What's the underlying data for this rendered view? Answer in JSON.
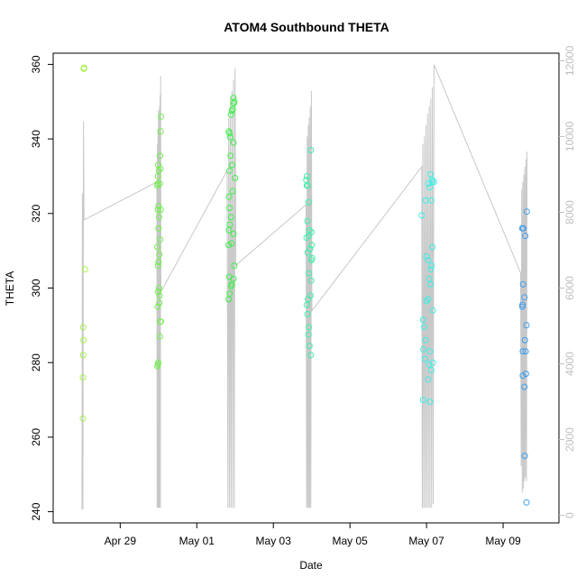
{
  "chart_data": {
    "type": "scatter",
    "title": "ATOM4 Southbound THETA",
    "xlabel": "Date",
    "ylabel": "THETA",
    "x_axis": {
      "type": "date",
      "range": [
        "2023-04-27T06:00",
        "2023-05-10T11:00"
      ],
      "ticks": [
        {
          "value": "2023-04-29",
          "label": "Apr 29"
        },
        {
          "value": "2023-05-01",
          "label": "May 01"
        },
        {
          "value": "2023-05-03",
          "label": "May 03"
        },
        {
          "value": "2023-05-05",
          "label": "May 05"
        },
        {
          "value": "2023-05-07",
          "label": "May 07"
        },
        {
          "value": "2023-05-09",
          "label": "May 09"
        }
      ]
    },
    "y_axis": {
      "range": [
        237,
        363
      ],
      "ticks": [
        240,
        260,
        280,
        300,
        320,
        340,
        360
      ]
    },
    "y2_axis": {
      "range": [
        -200,
        12200
      ],
      "ticks": [
        0,
        2000,
        4000,
        6000,
        8000,
        10000,
        12000
      ],
      "color": "#bfbfbf"
    },
    "grid": false,
    "legend": "none",
    "line_color": "#c8c8c8",
    "series": [
      {
        "color": "#a6f24a",
        "points": [
          [
            "2023-04-28T00:40",
            265
          ],
          [
            "2023-04-28T00:40",
            276
          ],
          [
            "2023-04-28T00:50",
            282
          ],
          [
            "2023-04-28T01:00",
            286
          ],
          [
            "2023-04-28T00:50",
            289.5
          ],
          [
            "2023-04-28T02:00",
            305
          ],
          [
            "2023-04-28T01:10",
            358.8
          ],
          [
            "2023-04-28T01:20",
            359.1
          ]
        ]
      },
      {
        "color": "#6ff04a",
        "points": [
          [
            "2023-04-29T23:20",
            279
          ],
          [
            "2023-04-29T23:40",
            279.5
          ],
          [
            "2023-04-29T23:50",
            280
          ],
          [
            "2023-04-29T23:30",
            295
          ],
          [
            "2023-04-30T00:30",
            296
          ],
          [
            "2023-04-30T00:40",
            298
          ],
          [
            "2023-04-29T23:50",
            299
          ],
          [
            "2023-04-30T00:20",
            300
          ],
          [
            "2023-04-29T23:40",
            306
          ],
          [
            "2023-04-30T00:00",
            307
          ],
          [
            "2023-04-30T00:30",
            309
          ],
          [
            "2023-04-29T23:20",
            311
          ],
          [
            "2023-04-30T01:00",
            313
          ],
          [
            "2023-04-30T00:00",
            316
          ],
          [
            "2023-04-30T00:20",
            319
          ],
          [
            "2023-04-29T23:40",
            321
          ],
          [
            "2023-04-30T01:20",
            321
          ],
          [
            "2023-04-30T00:00",
            322
          ],
          [
            "2023-04-29T23:20",
            327.5
          ],
          [
            "2023-04-29T23:30",
            328
          ],
          [
            "2023-04-30T00:50",
            328
          ],
          [
            "2023-04-29T23:40",
            330
          ],
          [
            "2023-04-30T00:10",
            331.5
          ],
          [
            "2023-04-29T23:50",
            333
          ],
          [
            "2023-04-30T01:10",
            332
          ],
          [
            "2023-04-30T01:00",
            335.5
          ],
          [
            "2023-04-30T01:20",
            342
          ],
          [
            "2023-04-30T01:30",
            346
          ],
          [
            "2023-04-30T00:50",
            287
          ],
          [
            "2023-04-30T01:10",
            291
          ],
          [
            "2023-04-30T01:30",
            291
          ]
        ]
      },
      {
        "color": "#3cf04a",
        "points": [
          [
            "2023-05-01T20:00",
            297
          ],
          [
            "2023-05-01T20:30",
            298.5
          ],
          [
            "2023-05-01T21:30",
            300.5
          ],
          [
            "2023-05-01T22:00",
            301
          ],
          [
            "2023-05-01T23:00",
            302.5
          ],
          [
            "2023-05-01T20:20",
            303
          ],
          [
            "2023-05-01T23:30",
            306
          ],
          [
            "2023-05-01T20:00",
            311.5
          ],
          [
            "2023-05-01T21:50",
            312
          ],
          [
            "2023-05-01T23:00",
            314.5
          ],
          [
            "2023-05-01T20:10",
            315.5
          ],
          [
            "2023-05-01T20:40",
            317
          ],
          [
            "2023-05-01T21:30",
            319
          ],
          [
            "2023-05-01T20:30",
            321.5
          ],
          [
            "2023-05-01T20:10",
            324.5
          ],
          [
            "2023-05-01T22:30",
            326
          ],
          [
            "2023-05-02T00:00",
            329.5
          ],
          [
            "2023-05-01T20:30",
            331.5
          ],
          [
            "2023-05-01T22:10",
            333
          ],
          [
            "2023-05-01T21:10",
            335.5
          ],
          [
            "2023-05-01T23:00",
            339
          ],
          [
            "2023-05-01T20:00",
            342
          ],
          [
            "2023-05-01T20:30",
            341.5
          ],
          [
            "2023-05-01T21:00",
            340.5
          ],
          [
            "2023-05-01T21:30",
            346.5
          ],
          [
            "2023-05-01T22:00",
            347.5
          ],
          [
            "2023-05-01T22:30",
            348
          ],
          [
            "2023-05-01T23:10",
            349.5
          ],
          [
            "2023-05-01T23:30",
            350
          ],
          [
            "2023-05-01T23:00",
            351
          ]
        ]
      },
      {
        "color": "#3af0a8",
        "points": [
          [
            "2023-05-03T23:30",
            282
          ],
          [
            "2023-05-03T22:40",
            284.5
          ],
          [
            "2023-05-03T22:00",
            287.5
          ],
          [
            "2023-05-03T22:20",
            289.5
          ],
          [
            "2023-05-03T21:20",
            293
          ],
          [
            "2023-05-03T21:00",
            295.5
          ],
          [
            "2023-05-03T21:40",
            297
          ],
          [
            "2023-05-03T23:20",
            298
          ],
          [
            "2023-05-03T23:40",
            302
          ],
          [
            "2023-05-03T22:20",
            304
          ],
          [
            "2023-05-03T23:50",
            307.5
          ],
          [
            "2023-05-04T00:20",
            308
          ],
          [
            "2023-05-03T21:30",
            309.5
          ],
          [
            "2023-05-03T23:00",
            310.5
          ],
          [
            "2023-05-04T00:00",
            311.5
          ],
          [
            "2023-05-03T20:50",
            313.5
          ],
          [
            "2023-05-03T22:10",
            314
          ],
          [
            "2023-05-03T22:40",
            315.5
          ],
          [
            "2023-05-03T23:50",
            315
          ],
          [
            "2023-05-03T21:20",
            318
          ],
          [
            "2023-05-03T22:10",
            323
          ],
          [
            "2023-05-03T21:00",
            327.5
          ],
          [
            "2023-05-03T21:30",
            327.5
          ],
          [
            "2023-05-03T20:40",
            329
          ],
          [
            "2023-05-03T21:00",
            330
          ],
          [
            "2023-05-03T23:30",
            337
          ]
        ]
      },
      {
        "color": "#3af0e6",
        "points": [
          [
            "2023-05-06T21:50",
            270
          ],
          [
            "2023-05-07T02:00",
            269.5
          ],
          [
            "2023-05-07T01:00",
            275.5
          ],
          [
            "2023-05-07T03:00",
            278
          ],
          [
            "2023-05-07T01:30",
            279.5
          ],
          [
            "2023-05-07T04:00",
            280
          ],
          [
            "2023-05-06T23:00",
            281
          ],
          [
            "2023-05-06T22:00",
            283.5
          ],
          [
            "2023-05-07T02:00",
            283
          ],
          [
            "2023-05-06T23:30",
            286
          ],
          [
            "2023-05-06T22:30",
            289.5
          ],
          [
            "2023-05-06T21:50",
            291.5
          ],
          [
            "2023-05-07T04:00",
            294
          ],
          [
            "2023-05-07T00:00",
            296.5
          ],
          [
            "2023-05-07T01:00",
            297
          ],
          [
            "2023-05-07T02:30",
            301
          ],
          [
            "2023-05-07T01:40",
            302.5
          ],
          [
            "2023-05-07T02:40",
            305
          ],
          [
            "2023-05-07T03:10",
            306
          ],
          [
            "2023-05-07T00:00",
            308.5
          ],
          [
            "2023-05-07T01:00",
            307.5
          ],
          [
            "2023-05-07T03:40",
            311
          ],
          [
            "2023-05-06T21:00",
            319.5
          ],
          [
            "2023-05-06T23:30",
            323.5
          ],
          [
            "2023-05-07T03:00",
            323.5
          ],
          [
            "2023-05-07T02:00",
            327
          ],
          [
            "2023-05-07T01:10",
            328
          ],
          [
            "2023-05-07T03:40",
            328.5
          ],
          [
            "2023-05-07T04:40",
            328.5
          ],
          [
            "2023-05-07T02:30",
            330.5
          ],
          [
            "2023-05-07T03:30",
            329
          ]
        ]
      },
      {
        "color": "#3a9ef0",
        "points": [
          [
            "2023-05-09T14:40",
            242.5
          ],
          [
            "2023-05-09T13:30",
            255
          ],
          [
            "2023-05-09T13:20",
            273.5
          ],
          [
            "2023-05-09T12:20",
            276.5
          ],
          [
            "2023-05-09T14:20",
            277
          ],
          [
            "2023-05-09T12:20",
            283
          ],
          [
            "2023-05-09T14:10",
            283
          ],
          [
            "2023-05-09T13:40",
            286
          ],
          [
            "2023-05-09T14:40",
            290
          ],
          [
            "2023-05-09T12:10",
            295.5
          ],
          [
            "2023-05-09T12:00",
            295
          ],
          [
            "2023-05-09T13:20",
            297.5
          ],
          [
            "2023-05-09T12:30",
            301
          ],
          [
            "2023-05-09T13:50",
            314
          ],
          [
            "2023-05-09T12:00",
            316
          ],
          [
            "2023-05-09T12:40",
            316
          ],
          [
            "2023-05-09T14:50",
            320.5
          ]
        ]
      }
    ],
    "secondary_line": {
      "axis": "y2",
      "description": "Depth profile trace on right axis",
      "points": [
        [
          "2023-04-28T00:00",
          150
        ],
        [
          "2023-04-28T00:20",
          8500
        ],
        [
          "2023-04-28T00:40",
          150
        ],
        [
          "2023-04-28T01:00",
          10400
        ],
        [
          "2023-04-28T01:20",
          7800
        ],
        [
          "2023-04-29T23:00",
          8800
        ],
        [
          "2023-04-29T23:10",
          200
        ],
        [
          "2023-04-29T23:20",
          9800
        ],
        [
          "2023-04-29T23:30",
          200
        ],
        [
          "2023-04-29T23:40",
          10200
        ],
        [
          "2023-04-29T23:50",
          200
        ],
        [
          "2023-04-30T00:00",
          10700
        ],
        [
          "2023-04-30T00:10",
          200
        ],
        [
          "2023-04-30T00:20",
          10500
        ],
        [
          "2023-04-30T00:30",
          200
        ],
        [
          "2023-04-30T00:40",
          10800
        ],
        [
          "2023-04-30T00:50",
          200
        ],
        [
          "2023-04-30T01:00",
          11100
        ],
        [
          "2023-04-30T01:10",
          200
        ],
        [
          "2023-04-30T01:20",
          11600
        ],
        [
          "2023-04-30T01:30",
          5900
        ],
        [
          "2023-05-01T19:00",
          9100
        ],
        [
          "2023-05-01T19:30",
          200
        ],
        [
          "2023-05-01T20:00",
          10500
        ],
        [
          "2023-05-01T20:30",
          200
        ],
        [
          "2023-05-01T21:00",
          11000
        ],
        [
          "2023-05-01T21:30",
          200
        ],
        [
          "2023-05-01T22:00",
          11200
        ],
        [
          "2023-05-01T22:30",
          200
        ],
        [
          "2023-05-01T23:00",
          11500
        ],
        [
          "2023-05-01T23:30",
          200
        ],
        [
          "2023-05-02T00:00",
          11800
        ],
        [
          "2023-05-02T00:30",
          6600
        ],
        [
          "2023-05-03T20:30",
          8200
        ],
        [
          "2023-05-03T20:50",
          200
        ],
        [
          "2023-05-03T21:10",
          10000
        ],
        [
          "2023-05-03T21:30",
          200
        ],
        [
          "2023-05-03T21:50",
          10300
        ],
        [
          "2023-05-03T22:10",
          200
        ],
        [
          "2023-05-03T22:30",
          10500
        ],
        [
          "2023-05-03T22:50",
          200
        ],
        [
          "2023-05-03T23:10",
          10800
        ],
        [
          "2023-05-03T23:30",
          200
        ],
        [
          "2023-05-03T23:50",
          11200
        ],
        [
          "2023-05-04T00:10",
          5400
        ],
        [
          "2023-05-06T21:00",
          9200
        ],
        [
          "2023-05-06T21:20",
          200
        ],
        [
          "2023-05-06T21:40",
          9800
        ],
        [
          "2023-05-06T22:10",
          200
        ],
        [
          "2023-05-06T22:40",
          10000
        ],
        [
          "2023-05-06T23:10",
          200
        ],
        [
          "2023-05-06T23:40",
          10300
        ],
        [
          "2023-05-07T00:10",
          200
        ],
        [
          "2023-05-07T00:40",
          10600
        ],
        [
          "2023-05-07T01:10",
          200
        ],
        [
          "2023-05-07T01:40",
          10800
        ],
        [
          "2023-05-07T02:10",
          200
        ],
        [
          "2023-05-07T02:40",
          11000
        ],
        [
          "2023-05-07T03:10",
          200
        ],
        [
          "2023-05-07T03:40",
          11300
        ],
        [
          "2023-05-07T04:10",
          300
        ],
        [
          "2023-05-07T04:40",
          11900
        ],
        [
          "2023-05-09T11:00",
          6400
        ],
        [
          "2023-05-09T11:20",
          1300
        ],
        [
          "2023-05-09T11:40",
          8600
        ],
        [
          "2023-05-09T12:00",
          600
        ],
        [
          "2023-05-09T12:20",
          8800
        ],
        [
          "2023-05-09T12:40",
          700
        ],
        [
          "2023-05-09T13:00",
          9000
        ],
        [
          "2023-05-09T13:20",
          900
        ],
        [
          "2023-05-09T13:40",
          9200
        ],
        [
          "2023-05-09T14:00",
          1000
        ],
        [
          "2023-05-09T14:20",
          9400
        ],
        [
          "2023-05-09T14:40",
          900
        ],
        [
          "2023-05-09T15:00",
          9600
        ]
      ]
    }
  }
}
